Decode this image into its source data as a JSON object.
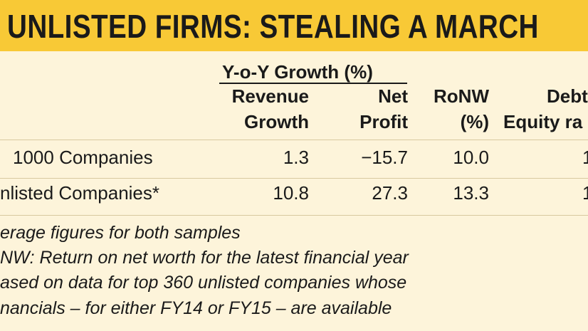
{
  "title": "UNLISTED FIRMS:  STEALING A MARCH",
  "table": {
    "group_header": "Y-o-Y Growth (%)",
    "columns": [
      [
        "Revenue",
        "Growth"
      ],
      [
        "Net",
        "Profit"
      ],
      [
        "RoNW",
        "(%)"
      ],
      [
        "Debt",
        "Equity ra"
      ]
    ],
    "rows": [
      [
        "1000 Companies",
        "1.3",
        "−15.7",
        "10.0",
        "1"
      ],
      [
        "nlisted Companies*",
        "10.8",
        "27.3",
        "13.3",
        "1"
      ]
    ]
  },
  "notes": [
    "erage figures for both samples",
    "NW: Return on net worth for the latest financial year",
    "ased on data for top 360 unlisted companies whose",
    "nancials – for either FY14 or FY15 – are available"
  ]
}
